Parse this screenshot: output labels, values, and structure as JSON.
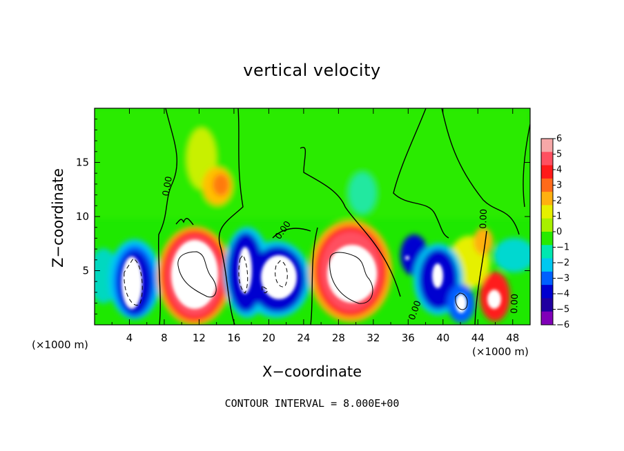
{
  "chart_data": {
    "type": "heatmap",
    "title": "vertical velocity",
    "xlabel": "X−coordinate",
    "ylabel": "Z−coordinate",
    "x_unit": "(×1000 m)",
    "note": "CONTOUR INTERVAL = 8.000E+00",
    "xlim": [
      0,
      50
    ],
    "ylim": [
      0,
      20
    ],
    "x_ticks": [
      4,
      8,
      12,
      16,
      20,
      24,
      28,
      32,
      36,
      40,
      44,
      48
    ],
    "y_ticks": [
      5,
      10,
      15
    ],
    "colorbar": {
      "ticks": [
        6,
        5,
        4,
        3,
        2,
        1,
        0,
        -1,
        -2,
        -3,
        -4,
        -5,
        -6
      ],
      "tick_labels": [
        "6",
        "5",
        "4",
        "3",
        "2",
        "1",
        "0",
        "−1",
        "−2",
        "−3",
        "−4",
        "−5",
        "−6"
      ],
      "colors": [
        "#f7a8a8",
        "#ff5060",
        "#ff1a1a",
        "#ff6a1a",
        "#ffb010",
        "#e6f000",
        "#a8f000",
        "#28ea00",
        "#00e8b0",
        "#00c8f0",
        "#0060ff",
        "#0000d0",
        "#2000a0",
        "#8000b8"
      ]
    },
    "contour_labels": [
      "0.00",
      "0.00",
      "0.00",
      "0.00",
      "0.00"
    ],
    "features": [
      {
        "kind": "updraft",
        "x": 4.8,
        "z": 4.2,
        "sign": -1
      },
      {
        "kind": "updraft",
        "x": 11.5,
        "z": 4.8,
        "sign": 1
      },
      {
        "kind": "updraft",
        "x": 17.6,
        "z": 4.8,
        "sign": -1
      },
      {
        "kind": "updraft",
        "x": 21.0,
        "z": 4.5,
        "sign": -1
      },
      {
        "kind": "updraft",
        "x": 29.5,
        "z": 5.0,
        "sign": 1
      },
      {
        "kind": "updraft",
        "x": 39.5,
        "z": 4.2,
        "sign": -1
      },
      {
        "kind": "updraft",
        "x": 42.2,
        "z": 2.3,
        "sign": -1
      },
      {
        "kind": "updraft",
        "x": 45.8,
        "z": 2.4,
        "sign": 1
      }
    ]
  }
}
